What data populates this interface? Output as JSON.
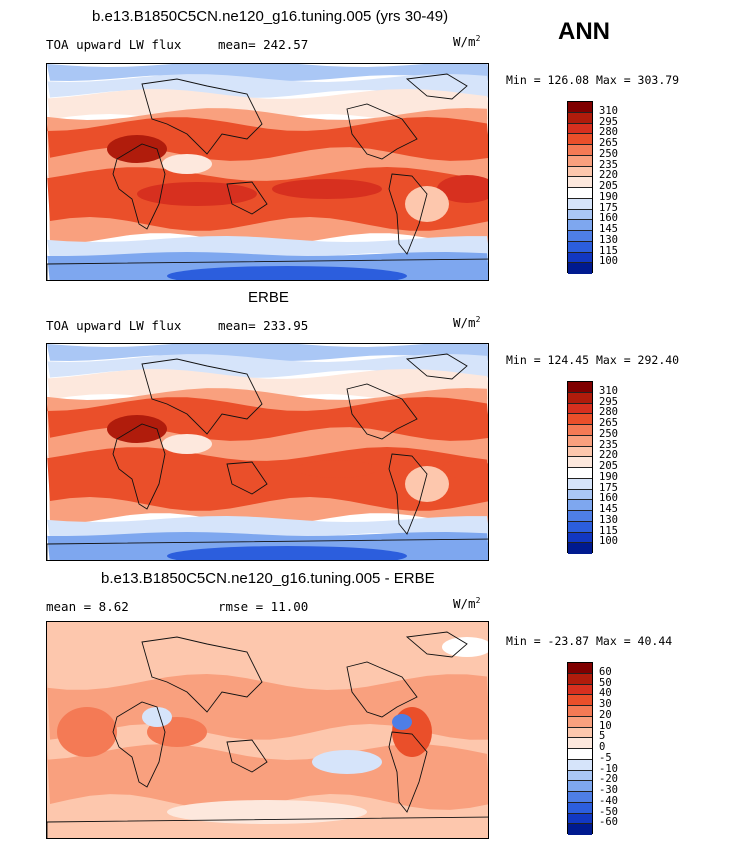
{
  "season": "ANN",
  "panels": [
    {
      "title": "b.e13.B1850C5CN.ne120_g16.tuning.005 (yrs 30-49)",
      "variable": "TOA upward LW flux",
      "mean_text": "mean= 242.57",
      "rmse_text": "",
      "units": "W/m",
      "units_sup": "2",
      "minmax": "Min = 126.08 Max = 303.79",
      "scale": "abs"
    },
    {
      "title": "ERBE",
      "variable": "TOA upward LW flux",
      "mean_text": "mean= 233.95",
      "rmse_text": "",
      "units": "W/m",
      "units_sup": "2",
      "minmax": "Min = 124.45 Max = 292.40",
      "scale": "abs"
    },
    {
      "title": "b.e13.B1850C5CN.ne120_g16.tuning.005 - ERBE",
      "variable": "",
      "mean_text": "mean =   8.62",
      "rmse_text": "rmse =   11.00",
      "units": "W/m",
      "units_sup": "2",
      "minmax": "Min = -23.87 Max =  40.44",
      "scale": "diff"
    }
  ],
  "colorbars": {
    "abs": {
      "labels": [
        "310",
        "295",
        "280",
        "265",
        "250",
        "235",
        "220",
        "205",
        "190",
        "175",
        "160",
        "145",
        "130",
        "115",
        "100"
      ],
      "colors": [
        "#7f0000",
        "#b01c0c",
        "#d7301f",
        "#ea4f2a",
        "#f47a55",
        "#f9a07e",
        "#fdc7ad",
        "#fde8dd",
        "#ffffff",
        "#d6e4fa",
        "#aac7f5",
        "#7ea7ef",
        "#4e7ee6",
        "#2c5edd",
        "#1238c2",
        "#001a8f"
      ]
    },
    "diff": {
      "labels": [
        "60",
        "50",
        "40",
        "30",
        "20",
        "10",
        "5",
        "0",
        "-5",
        "-10",
        "-20",
        "-30",
        "-40",
        "-50",
        "-60"
      ],
      "colors": [
        "#7f0000",
        "#b01c0c",
        "#d7301f",
        "#ea4f2a",
        "#f47a55",
        "#f9a07e",
        "#fdc7ad",
        "#fde8dd",
        "#ffffff",
        "#d6e4fa",
        "#aac7f5",
        "#7ea7ef",
        "#4e7ee6",
        "#2c5edd",
        "#1238c2",
        "#001a8f"
      ]
    }
  }
}
